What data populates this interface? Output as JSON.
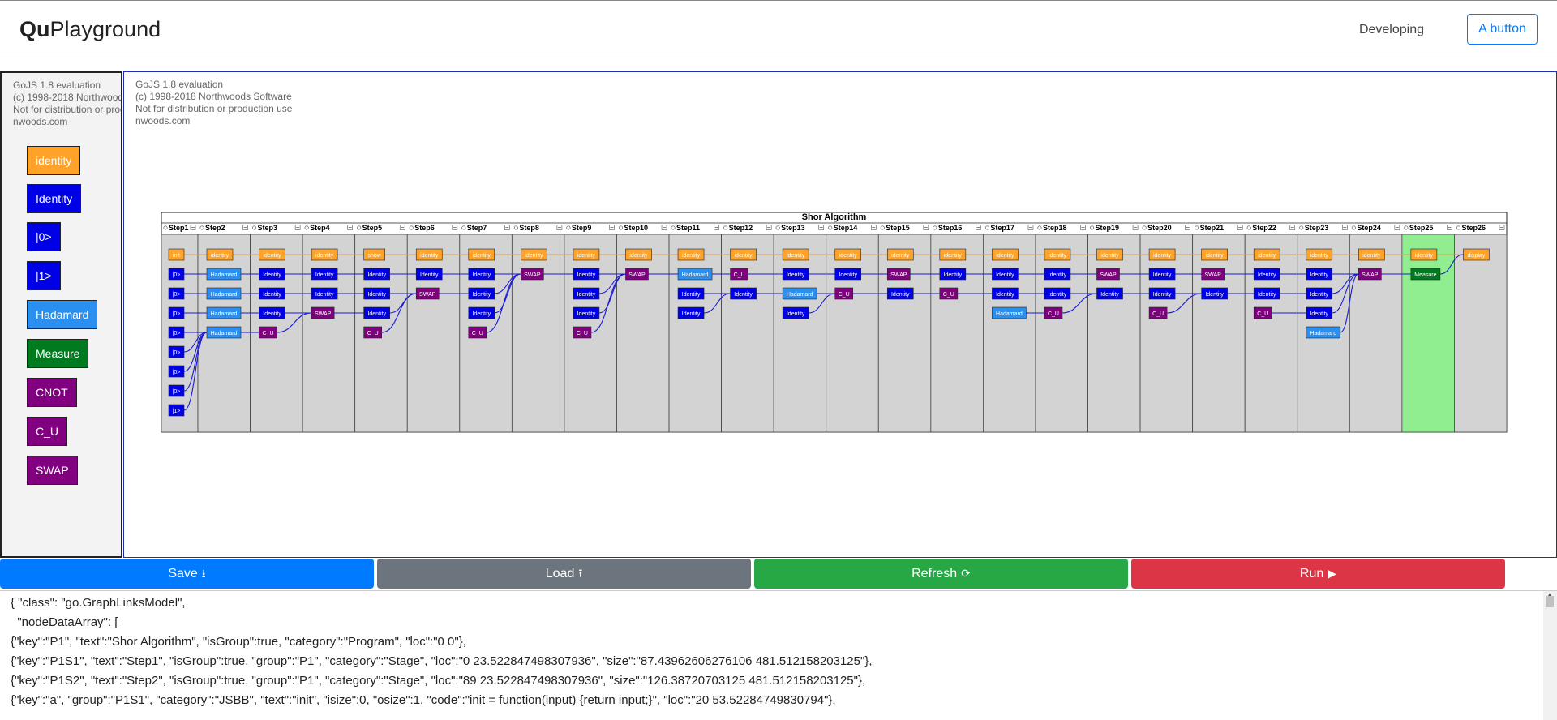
{
  "header": {
    "brand_bold": "Qu",
    "brand_rest": "Playground",
    "dev_link": "Developing",
    "button": "A button"
  },
  "eval_notice": "GoJS 1.8 evaluation\n(c) 1998-2018 Northwoods Software\nNot for distribution or production use\nnwoods.com",
  "palette": {
    "items": [
      {
        "label": "identity",
        "color": "#ffa229",
        "text_color": "#ffffff"
      },
      {
        "label": "Identity",
        "color": "#0000e6",
        "text_color": "#ffffff"
      },
      {
        "label": "|0>",
        "color": "#0000e6",
        "text_color": "#ffffff"
      },
      {
        "label": "|1>",
        "color": "#0000e6",
        "text_color": "#ffffff"
      },
      {
        "label": "Hadamard",
        "color": "#2b8ff0",
        "text_color": "#ffffff"
      },
      {
        "label": "Measure",
        "color": "#007a1f",
        "text_color": "#ffffff"
      },
      {
        "label": "CNOT",
        "color": "#800080",
        "text_color": "#ffffff"
      },
      {
        "label": "C_U",
        "color": "#800080",
        "text_color": "#ffffff"
      },
      {
        "label": "SWAP",
        "color": "#800080",
        "text_color": "#ffffff"
      }
    ]
  },
  "diagram": {
    "title": "Shor Algorithm",
    "stages": [
      "Step1",
      "Step2",
      "Step3",
      "Step4",
      "Step5",
      "Step6",
      "Step7",
      "Step8",
      "Step9",
      "Step10",
      "Step11",
      "Step12",
      "Step13",
      "Step14",
      "Step15",
      "Step16",
      "Step17",
      "Step18",
      "Step19",
      "Step20",
      "Step21",
      "Step22",
      "Step23",
      "Step24",
      "Step25",
      "Step26"
    ],
    "highlight_stage": "Step25",
    "colors": {
      "orange": "#ffa229",
      "blue": "#0000e6",
      "lightblue": "#2b8ff0",
      "purple": "#800080",
      "green": "#007a1f",
      "stage_bg": "#d3d3d3",
      "stage_highlight": "#90ee90",
      "link_blue": "#1a1ad6",
      "link_orange": "#e6a04c"
    },
    "columns": [
      [
        "init",
        "|0>",
        "|0>",
        "|0>",
        "|0>",
        "|0>",
        "|0>",
        "|0>",
        "|1>"
      ],
      [
        "identity",
        "Hadamard",
        "Hadamard",
        "Hadamard",
        "Hadamard"
      ],
      [
        "identity",
        "Identity",
        "Identity",
        "Identity",
        "C_U"
      ],
      [
        "identity",
        "Identity",
        "Identity",
        "SWAP"
      ],
      [
        "show",
        "Identity",
        "Identity",
        "Identity",
        "C_U"
      ],
      [
        "identity",
        "Identity",
        "SWAP"
      ],
      [
        "identity",
        "Identity",
        "Identity",
        "Identity",
        "C_U"
      ],
      [
        "identity",
        "SWAP"
      ],
      [
        "identity",
        "Identity",
        "Identity",
        "Identity",
        "C_U"
      ],
      [
        "identity",
        "SWAP"
      ],
      [
        "identity",
        "Hadamard",
        "Identity",
        "Identity"
      ],
      [
        "identity",
        "C_U",
        "Identity"
      ],
      [
        "identity",
        "Identity",
        "Hadamard",
        "Identity"
      ],
      [
        "identity",
        "Identity",
        "C_U"
      ],
      [
        "identity",
        "SWAP",
        "Identity"
      ],
      [
        "identity",
        "Identity",
        "C_U"
      ],
      [
        "identity",
        "Identity",
        "Identity",
        "Hadamard"
      ],
      [
        "identity",
        "Identity",
        "Identity",
        "C_U"
      ],
      [
        "identity",
        "SWAP",
        "Identity"
      ],
      [
        "identity",
        "Identity",
        "Identity",
        "C_U"
      ],
      [
        "identity",
        "SWAP",
        "Identity"
      ],
      [
        "identity",
        "Identity",
        "Identity",
        "C_U"
      ],
      [
        "identity",
        "Identity",
        "Identity",
        "Identity",
        "Hadamard"
      ],
      [
        "identity",
        "SWAP"
      ],
      [
        "identity",
        "Measure"
      ],
      [
        "display"
      ]
    ]
  },
  "buttons": [
    {
      "label": "Save",
      "icon": "⭳",
      "color": "#007bff"
    },
    {
      "label": "Load",
      "icon": "⭱",
      "color": "#6c757d"
    },
    {
      "label": "Refresh",
      "icon": "⟳",
      "color": "#28a745"
    },
    {
      "label": "Run",
      "icon": "▶",
      "color": "#dc3545"
    }
  ],
  "code_lines": [
    "{ \"class\": \"go.GraphLinksModel\",",
    "  \"nodeDataArray\": [",
    "{\"key\":\"P1\", \"text\":\"Shor Algorithm\", \"isGroup\":true, \"category\":\"Program\", \"loc\":\"0 0\"},",
    "{\"key\":\"P1S1\", \"text\":\"Step1\", \"isGroup\":true, \"group\":\"P1\", \"category\":\"Stage\", \"loc\":\"0 23.522847498307936\", \"size\":\"87.43962606276106 481.512158203125\"},",
    "{\"key\":\"P1S2\", \"text\":\"Step2\", \"isGroup\":true, \"group\":\"P1\", \"category\":\"Stage\", \"loc\":\"89 23.522847498307936\", \"size\":\"126.38720703125 481.512158203125\"},",
    "{\"key\":\"a\", \"group\":\"P1S1\", \"category\":\"JSBB\", \"text\":\"init\", \"isize\":0, \"osize\":1, \"code\":\"init = function(input) {return input;}\", \"loc\":\"20 53.52284749830794\"},"
  ]
}
